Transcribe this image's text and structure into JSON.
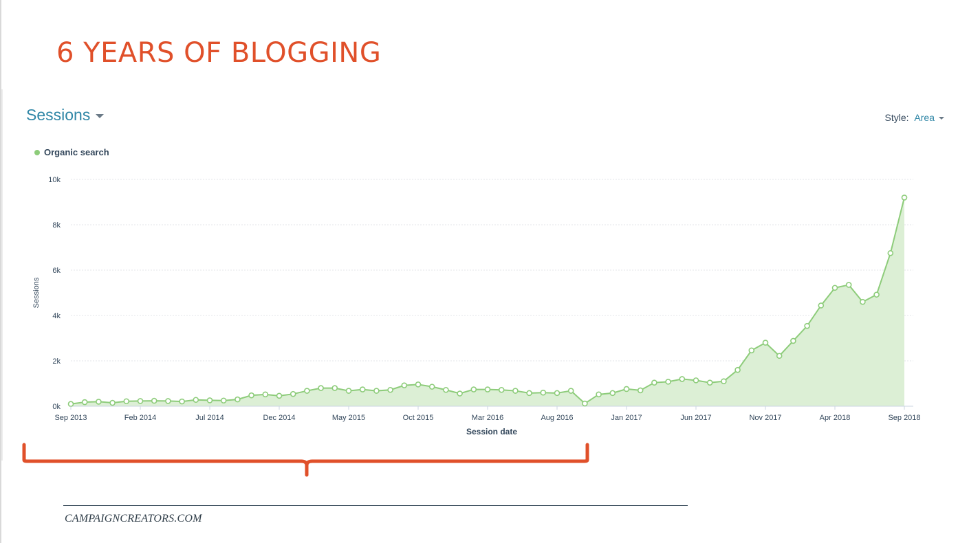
{
  "slide": {
    "title": "6 YEARS OF BLOGGING",
    "footer": "CAMPAIGNCREATORS.COM"
  },
  "dashboard": {
    "metric_label": "Sessions",
    "style_label": "Style:",
    "style_value": "Area"
  },
  "colors": {
    "title": "#e0502a",
    "accent": "#2f86a6",
    "series_line": "#8dcc7a",
    "series_fill": "#dcefd5",
    "bracket": "#e0502a"
  },
  "chart_data": {
    "type": "area",
    "xlabel": "Session date",
    "ylabel": "Sessions",
    "ylim": [
      0,
      10000
    ],
    "yticks": [
      0,
      2000,
      4000,
      6000,
      8000,
      10000
    ],
    "ytick_labels": [
      "0k",
      "2k",
      "4k",
      "6k",
      "8k",
      "10k"
    ],
    "xtick_labels": [
      "Sep 2013",
      "Feb 2014",
      "Jul 2014",
      "Dec 2014",
      "May 2015",
      "Oct 2015",
      "Mar 2016",
      "Aug 2016",
      "Jan 2017",
      "Jun 2017",
      "Nov 2017",
      "Apr 2018",
      "Sep 2018"
    ],
    "xtick_every": 5,
    "grid": true,
    "legend_position": "top-left",
    "series": [
      {
        "name": "Organic search",
        "color": "#8dcc7a",
        "values": [
          100,
          180,
          200,
          150,
          220,
          230,
          240,
          230,
          210,
          280,
          260,
          250,
          300,
          480,
          520,
          460,
          540,
          680,
          800,
          800,
          680,
          740,
          680,
          720,
          920,
          960,
          860,
          720,
          560,
          740,
          740,
          720,
          680,
          580,
          600,
          580,
          680,
          120,
          520,
          580,
          760,
          700,
          1040,
          1080,
          1200,
          1140,
          1040,
          1100,
          1600,
          2460,
          2800,
          2220,
          2880,
          3540,
          4440,
          5220,
          5350,
          4600,
          4920,
          6750,
          9200
        ]
      }
    ]
  }
}
